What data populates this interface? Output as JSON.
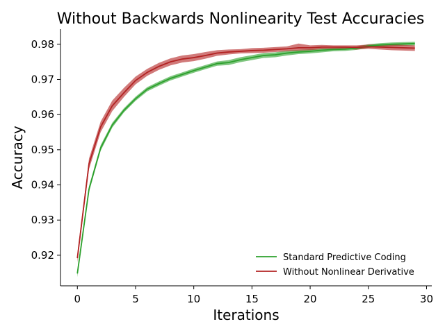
{
  "chart_data": {
    "type": "line",
    "title": "Without Backwards Nonlinearity Test Accuracies",
    "xlabel": "Iterations",
    "ylabel": "Accuracy",
    "xlim": [
      -1.45,
      30.45
    ],
    "ylim": [
      0.9113,
      0.9843
    ],
    "xticks": [
      0,
      5,
      10,
      15,
      20,
      25,
      30
    ],
    "xtick_labels": [
      "0",
      "5",
      "10",
      "15",
      "20",
      "25",
      "30"
    ],
    "yticks": [
      0.92,
      0.93,
      0.94,
      0.95,
      0.96,
      0.97,
      0.98
    ],
    "ytick_labels": [
      "0.92",
      "0.93",
      "0.94",
      "0.95",
      "0.96",
      "0.97",
      "0.98"
    ],
    "legend_position": "lower-right",
    "grid": false,
    "x": [
      0,
      1,
      2,
      3,
      4,
      5,
      6,
      7,
      8,
      9,
      10,
      11,
      12,
      13,
      14,
      15,
      16,
      17,
      18,
      19,
      20,
      21,
      22,
      23,
      24,
      25,
      26,
      27,
      28,
      29
    ],
    "series": [
      {
        "name": "Standard Predictive Coding",
        "color": "#2ca02c",
        "values": [
          0.9148,
          0.9388,
          0.9505,
          0.957,
          0.9612,
          0.9645,
          0.9672,
          0.9688,
          0.9703,
          0.9714,
          0.9725,
          0.9735,
          0.9745,
          0.9748,
          0.9756,
          0.9762,
          0.9768,
          0.977,
          0.9775,
          0.9778,
          0.978,
          0.9783,
          0.9785,
          0.9786,
          0.9789,
          0.9795,
          0.9798,
          0.98,
          0.9801,
          0.9802
        ],
        "band_low": [
          0.9138,
          0.938,
          0.9497,
          0.9563,
          0.9606,
          0.9639,
          0.9666,
          0.9682,
          0.9697,
          0.9708,
          0.9719,
          0.9729,
          0.9739,
          0.9741,
          0.9749,
          0.9755,
          0.9761,
          0.9763,
          0.9768,
          0.9772,
          0.9774,
          0.9777,
          0.978,
          0.9781,
          0.9784,
          0.979,
          0.9793,
          0.9795,
          0.9796,
          0.9797
        ],
        "band_high": [
          0.9158,
          0.9396,
          0.9513,
          0.9577,
          0.9618,
          0.9651,
          0.9678,
          0.9694,
          0.9709,
          0.972,
          0.9731,
          0.9741,
          0.9751,
          0.9755,
          0.9763,
          0.9769,
          0.9775,
          0.9777,
          0.9782,
          0.9784,
          0.9786,
          0.9789,
          0.979,
          0.9791,
          0.9794,
          0.98,
          0.9803,
          0.9805,
          0.9806,
          0.9807
        ]
      },
      {
        "name": "Without Nonlinear Derivative",
        "color": "#b22222",
        "values": [
          0.9192,
          0.946,
          0.9565,
          0.9625,
          0.9662,
          0.9697,
          0.972,
          0.9737,
          0.975,
          0.9758,
          0.9762,
          0.9768,
          0.9775,
          0.9778,
          0.978,
          0.9782,
          0.9783,
          0.9785,
          0.9787,
          0.979,
          0.979,
          0.9792,
          0.9792,
          0.9792,
          0.9791,
          0.9793,
          0.9792,
          0.9791,
          0.979,
          0.9789
        ],
        "band_low": [
          0.918,
          0.9445,
          0.955,
          0.961,
          0.965,
          0.9686,
          0.971,
          0.9727,
          0.974,
          0.9748,
          0.9752,
          0.9759,
          0.9767,
          0.9771,
          0.9774,
          0.9775,
          0.9776,
          0.9778,
          0.978,
          0.9782,
          0.9783,
          0.9786,
          0.9787,
          0.9787,
          0.9785,
          0.9787,
          0.9785,
          0.9783,
          0.9782,
          0.9781
        ],
        "band_high": [
          0.9204,
          0.9475,
          0.958,
          0.964,
          0.9676,
          0.9708,
          0.973,
          0.9747,
          0.976,
          0.9768,
          0.9772,
          0.9778,
          0.9783,
          0.9785,
          0.9786,
          0.9789,
          0.979,
          0.9792,
          0.9794,
          0.9802,
          0.9797,
          0.9798,
          0.9797,
          0.9797,
          0.9797,
          0.9799,
          0.9799,
          0.9799,
          0.9798,
          0.9797
        ]
      }
    ]
  }
}
